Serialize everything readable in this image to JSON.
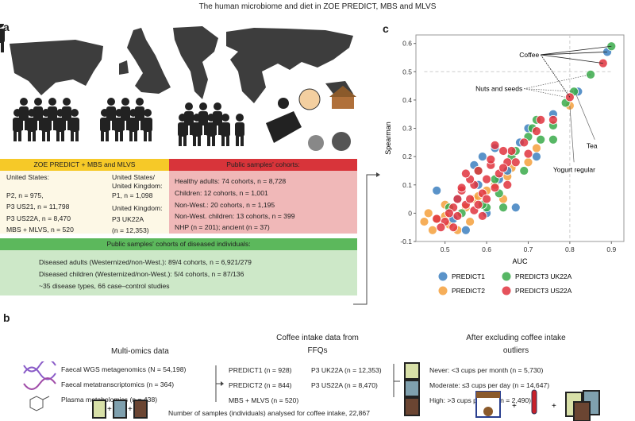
{
  "title": "The human microbiome and diet in ZOE PREDICT, MBS and MLVS",
  "panel_a": {
    "label": "a",
    "zoe_box": {
      "header": "ZOE PREDICT + MBS and MLVS",
      "col1": [
        "United States:",
        "P2, n = 975,",
        "P3 US21, n = 11,798",
        "P3 US22A, n = 8,470",
        "MBS + MLVS, n = 520"
      ],
      "col2": [
        "United States/",
        "United Kingdom:",
        "P1, n = 1,098",
        "United Kingdom:",
        "P3 UK22A",
        "(n = 12,353)"
      ]
    },
    "public_box": {
      "header": "Public samples' cohorts:",
      "lines": [
        "Healthy adults: 74 cohorts, n = 8,728",
        "Children: 12 cohorts, n = 1,001",
        "Non-West.: 20 cohorts, n = 1,195",
        "Non-West. children: 13 cohorts, n = 399",
        "NHP (n = 201); ancient (n = 37)"
      ]
    },
    "diseased_box": {
      "header": "Public samples' cohorts of diseased individuals:",
      "lines": [
        "Diseased adults (Westernized/non-West.): 89/4 cohorts, n = 6,921/279",
        "Diseased children (Westernized/non-West.): 5/4 cohorts, n = 87/136",
        "~35 disease types, 66 case–control studies"
      ]
    },
    "colors": {
      "yellow": "#f6c928",
      "yellow_bg": "#fdf8e6",
      "red": "#d8343a",
      "red_bg": "#f0b8b8",
      "green": "#5cb85c",
      "green_bg": "#cde8c8"
    }
  },
  "panel_b": {
    "label": "b",
    "multiomics": {
      "title": "Multi-omics data",
      "items": [
        "Faecal WGS metagenomics (N = 54,198)",
        "Faecal metatranscriptomics (n = 364)",
        "Plasma metabolomics (n = 438)"
      ]
    },
    "ffq": {
      "title_line1": "Coffee intake data from",
      "title_line2": "FFQs",
      "col1": [
        "PREDICT1 (n = 928)",
        "PREDICT2 (n = 844)",
        "MBS + MLVS (n = 520)"
      ],
      "col2": [
        "P3 UK22A (n = 12,353)",
        "P3 US22A (n = 8,470)"
      ]
    },
    "outliers": {
      "title_line1": "After excluding coffee intake",
      "title_line2": "outliers",
      "items": [
        "Never: <3 cups per month (n = 5,730)",
        "Moderate: ≤3 cups per day (n = 14,647)",
        "High: >3 cups per day (n = 2,490)"
      ]
    },
    "total": "Number of samples (individuals) analysed for coffee intake, 22,867"
  },
  "chart_data": {
    "type": "scatter",
    "label": "c",
    "xlabel": "AUC",
    "ylabel": "Spearman",
    "xlim": [
      0.43,
      0.93
    ],
    "ylim": [
      -0.1,
      0.63
    ],
    "xticks": [
      "0.5",
      "0.6",
      "0.7",
      "0.8",
      "0.9"
    ],
    "yticks": [
      "-0.1",
      "0",
      "0.1",
      "0.2",
      "0.3",
      "0.4",
      "0.5",
      "0.6"
    ],
    "reference_lines": {
      "x": 0.8,
      "y": 0.5
    },
    "grid": false,
    "legend_placement": "bottom",
    "annotations": [
      "Coffee",
      "Nuts and seeds",
      "Tea",
      "Yogurt regular"
    ],
    "series": [
      {
        "name": "PREDICT1",
        "color": "#3d80c0",
        "points": [
          [
            0.48,
            0.08
          ],
          [
            0.67,
            0.02
          ],
          [
            0.76,
            0.35
          ],
          [
            0.7,
            0.3
          ],
          [
            0.59,
            0.2
          ],
          [
            0.57,
            0.17
          ],
          [
            0.62,
            0.23
          ],
          [
            0.55,
            -0.06
          ],
          [
            0.6,
            0.0
          ],
          [
            0.72,
            0.2
          ],
          [
            0.65,
            0.15
          ],
          [
            0.53,
            0.05
          ],
          [
            0.58,
            0.1
          ],
          [
            0.63,
            0.12
          ],
          [
            0.52,
            -0.02
          ],
          [
            0.68,
            0.25
          ],
          [
            0.82,
            0.43
          ],
          [
            0.89,
            0.57
          ]
        ]
      },
      {
        "name": "PREDICT2",
        "color": "#f5a03c",
        "points": [
          [
            0.45,
            -0.03
          ],
          [
            0.46,
            0.0
          ],
          [
            0.47,
            -0.06
          ],
          [
            0.48,
            -0.02
          ],
          [
            0.5,
            0.03
          ],
          [
            0.51,
            -0.04
          ],
          [
            0.53,
            -0.06
          ],
          [
            0.55,
            0.02
          ],
          [
            0.57,
            0.05
          ],
          [
            0.6,
            0.08
          ],
          [
            0.62,
            0.1
          ],
          [
            0.65,
            0.13
          ],
          [
            0.7,
            0.18
          ],
          [
            0.72,
            0.23
          ],
          [
            0.8,
            0.38
          ],
          [
            0.5,
            -0.01
          ],
          [
            0.56,
            -0.03
          ],
          [
            0.58,
            0.06
          ],
          [
            0.64,
            0.05
          ],
          [
            0.66,
            0.16
          ]
        ]
      },
      {
        "name": "PREDICT3 UK22A",
        "color": "#3aaa4a",
        "points": [
          [
            0.9,
            0.59
          ],
          [
            0.85,
            0.49
          ],
          [
            0.81,
            0.43
          ],
          [
            0.79,
            0.39
          ],
          [
            0.72,
            0.33
          ],
          [
            0.76,
            0.31
          ],
          [
            0.73,
            0.26
          ],
          [
            0.76,
            0.26
          ],
          [
            0.7,
            0.27
          ],
          [
            0.69,
            0.15
          ],
          [
            0.64,
            0.02
          ],
          [
            0.6,
            0.02
          ],
          [
            0.59,
            0.03
          ],
          [
            0.63,
            0.07
          ],
          [
            0.66,
            0.2
          ],
          [
            0.58,
            0.15
          ],
          [
            0.54,
            0.0
          ],
          [
            0.51,
            0.02
          ],
          [
            0.67,
            0.22
          ],
          [
            0.71,
            0.3
          ],
          [
            0.62,
            0.12
          ]
        ]
      },
      {
        "name": "PREDICT3 US22A",
        "color": "#e0343e",
        "points": [
          [
            0.88,
            0.53
          ],
          [
            0.8,
            0.41
          ],
          [
            0.76,
            0.33
          ],
          [
            0.73,
            0.33
          ],
          [
            0.72,
            0.29
          ],
          [
            0.7,
            0.21
          ],
          [
            0.69,
            0.25
          ],
          [
            0.66,
            0.22
          ],
          [
            0.65,
            0.18
          ],
          [
            0.64,
            0.22
          ],
          [
            0.62,
            0.24
          ],
          [
            0.61,
            0.17
          ],
          [
            0.6,
            0.12
          ],
          [
            0.59,
            0.07
          ],
          [
            0.58,
            0.15
          ],
          [
            0.57,
            0.1
          ],
          [
            0.56,
            0.12
          ],
          [
            0.55,
            0.14
          ],
          [
            0.54,
            0.08
          ],
          [
            0.53,
            0.05
          ],
          [
            0.52,
            0.02
          ],
          [
            0.51,
            0.0
          ],
          [
            0.5,
            -0.03
          ],
          [
            0.49,
            -0.05
          ],
          [
            0.48,
            -0.02
          ],
          [
            0.52,
            -0.05
          ],
          [
            0.55,
            0.03
          ],
          [
            0.57,
            0.01
          ],
          [
            0.59,
            -0.01
          ],
          [
            0.6,
            0.05
          ],
          [
            0.62,
            0.09
          ],
          [
            0.63,
            0.14
          ],
          [
            0.65,
            0.1
          ],
          [
            0.67,
            0.18
          ],
          [
            0.54,
            0.09
          ],
          [
            0.56,
            0.05
          ],
          [
            0.58,
            0.03
          ],
          [
            0.61,
            0.19
          ],
          [
            0.64,
            0.16
          ],
          [
            0.53,
            -0.01
          ]
        ]
      }
    ]
  }
}
